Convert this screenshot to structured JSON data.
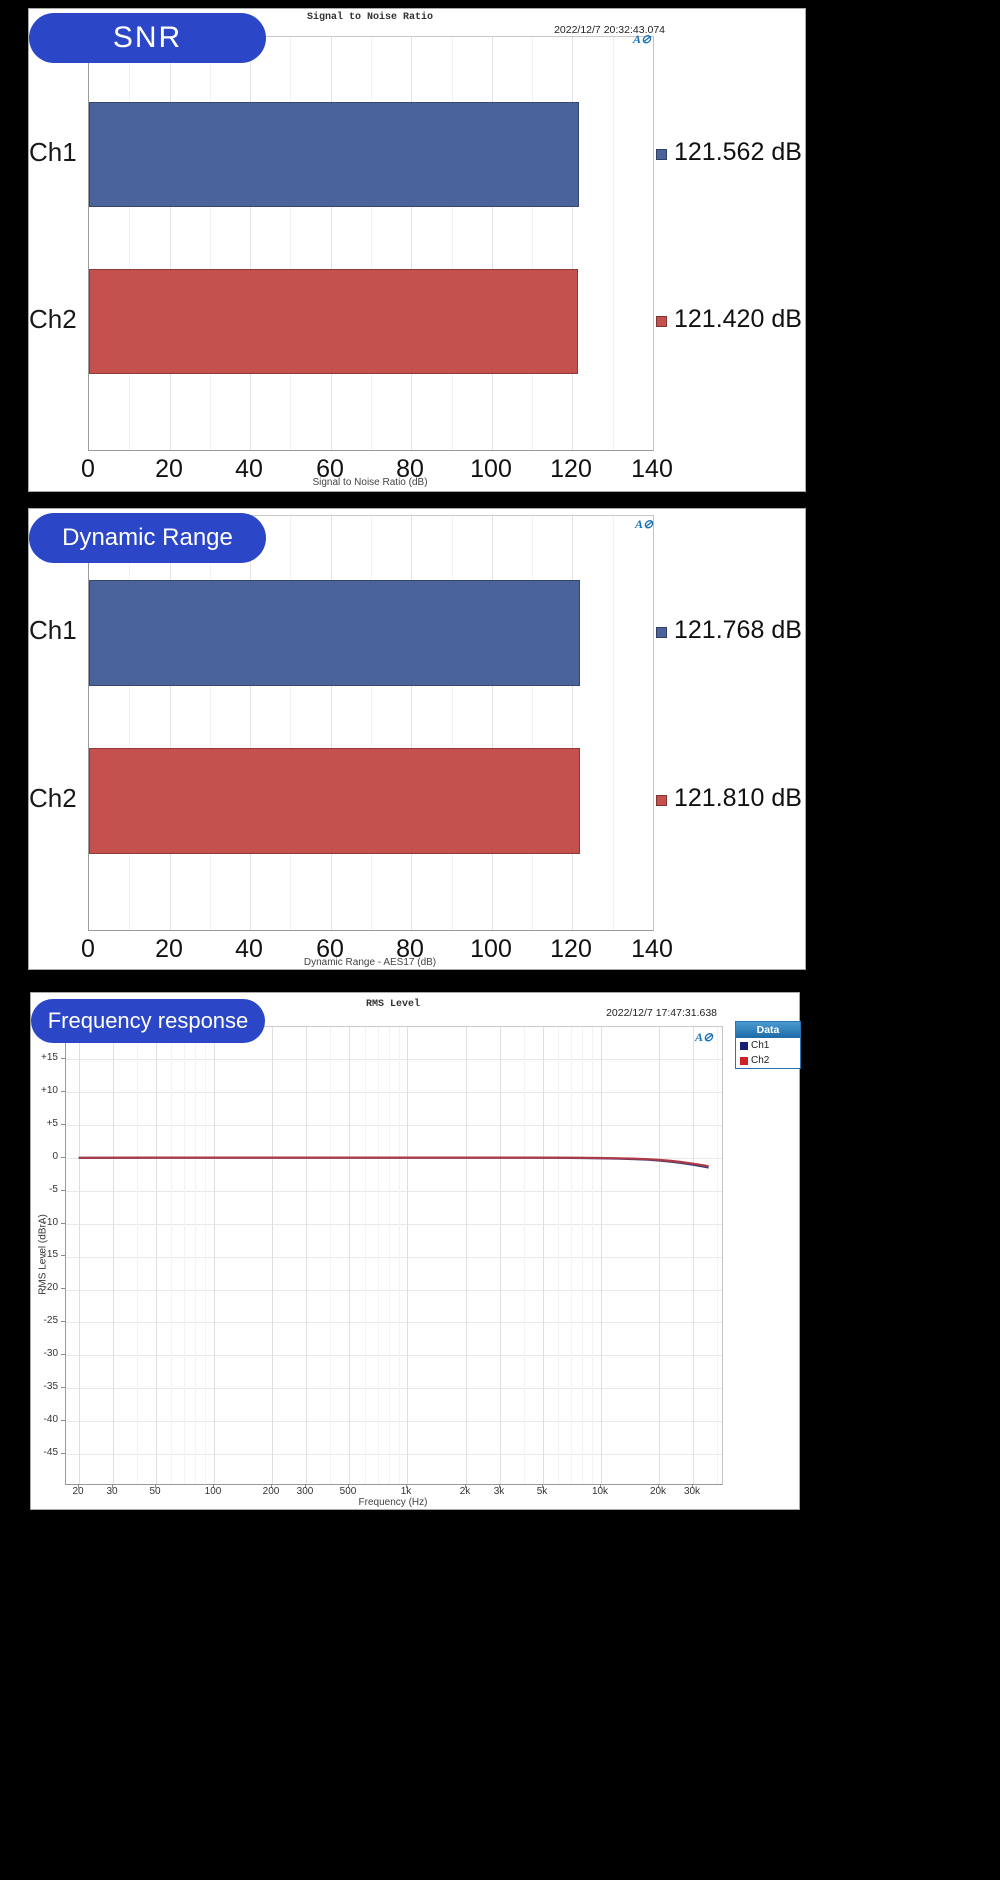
{
  "ui": {
    "page_background": "#000000",
    "badge_color": "#2b46c6",
    "ap_logo": "A⊘"
  },
  "chart_data": [
    {
      "id": "snr",
      "type": "bar",
      "orientation": "horizontal",
      "badge": "SNR",
      "title": "Signal to Noise Ratio",
      "timestamp": "2022/12/7 20:32:43.074",
      "xlabel": "Signal to Noise Ratio (dB)",
      "categories": [
        "Ch1",
        "Ch2"
      ],
      "values": [
        121.562,
        121.42
      ],
      "value_labels": [
        "121.562 dB",
        "121.420 dB"
      ],
      "bar_colors": [
        "#4a639b",
        "#c5514e"
      ],
      "xlim": [
        0,
        140
      ],
      "xticks": [
        0,
        20,
        40,
        60,
        80,
        100,
        120,
        140
      ],
      "minor_step": 10,
      "grid": true
    },
    {
      "id": "dynamic-range",
      "type": "bar",
      "orientation": "horizontal",
      "badge": "Dynamic Range",
      "title": "",
      "timestamp": "",
      "xlabel": "Dynamic Range - AES17 (dB)",
      "categories": [
        "Ch1",
        "Ch2"
      ],
      "values": [
        121.768,
        121.81
      ],
      "value_labels": [
        "121.768 dB",
        "121.810 dB"
      ],
      "bar_colors": [
        "#4a639b",
        "#c5514e"
      ],
      "xlim": [
        0,
        140
      ],
      "xticks": [
        0,
        20,
        40,
        60,
        80,
        100,
        120,
        140
      ],
      "minor_step": 10,
      "grid": true
    },
    {
      "id": "rms-level",
      "type": "line",
      "badge": "Frequency response",
      "title": "RMS Level",
      "timestamp": "2022/12/7 17:47:31.638",
      "xlabel": "Frequency (Hz)",
      "ylabel": "RMS Level (dBrA)",
      "xscale": "log",
      "xlim": [
        17.2,
        42000
      ],
      "ylim": [
        -49.5,
        19.8
      ],
      "xticks": [
        20,
        30,
        50,
        100,
        200,
        300,
        500,
        1000,
        2000,
        3000,
        5000,
        10000,
        20000,
        30000
      ],
      "xtick_labels": [
        "20",
        "30",
        "50",
        "100",
        "200",
        "300",
        "500",
        "1k",
        "2k",
        "3k",
        "5k",
        "10k",
        "20k",
        "30k"
      ],
      "yticks": [
        15,
        10,
        5,
        0,
        -5,
        -10,
        -15,
        -20,
        -25,
        -30,
        -35,
        -40,
        -45
      ],
      "ytick_labels": [
        "+15",
        "+10",
        "+5",
        "0",
        "-5",
        "-10",
        "-15",
        "-20",
        "-25",
        "-30",
        "-35",
        "-40",
        "-45"
      ],
      "grid": true,
      "legend": {
        "header": "Data",
        "position": "top-right",
        "entries": [
          {
            "label": "Ch1",
            "color": "#181f72"
          },
          {
            "label": "Ch2",
            "color": "#cc2125"
          }
        ]
      },
      "series": [
        {
          "name": "Ch1",
          "color": "#333c7c",
          "x": [
            20,
            30,
            50,
            100,
            200,
            500,
            1000,
            2000,
            4000,
            6000,
            8000,
            10000,
            12500,
            15000,
            17500,
            20000,
            23000,
            26000,
            29000,
            32000,
            34500,
            36000
          ],
          "y": [
            -0.05,
            -0.03,
            -0.02,
            -0.01,
            0,
            0,
            0,
            -0.01,
            -0.02,
            -0.04,
            -0.07,
            -0.11,
            -0.16,
            -0.23,
            -0.33,
            -0.45,
            -0.62,
            -0.81,
            -1.02,
            -1.24,
            -1.4,
            -1.5
          ]
        },
        {
          "name": "Ch2",
          "color": "#ad3a47",
          "x": [
            20,
            30,
            50,
            100,
            200,
            500,
            1000,
            2000,
            4000,
            6000,
            8000,
            10000,
            12500,
            15000,
            17500,
            20000,
            23000,
            26000,
            29000,
            32000,
            34500,
            36000
          ],
          "y": [
            -0.03,
            -0.02,
            -0.01,
            0,
            0,
            0,
            0,
            0,
            -0.01,
            -0.02,
            -0.04,
            -0.07,
            -0.11,
            -0.17,
            -0.25,
            -0.35,
            -0.5,
            -0.67,
            -0.87,
            -1.07,
            -1.22,
            -1.32
          ]
        }
      ]
    }
  ]
}
